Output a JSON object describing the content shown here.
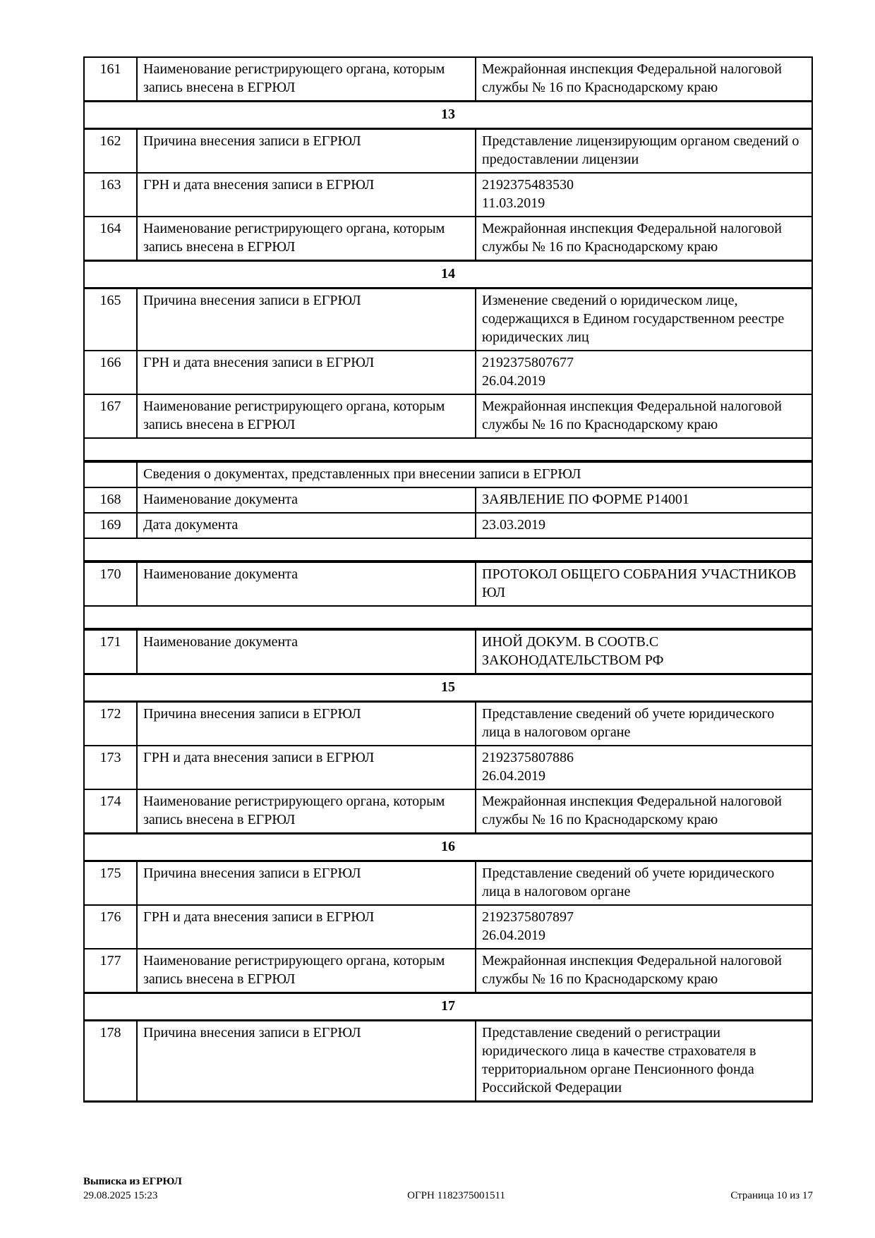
{
  "document": {
    "table": {
      "rows": [
        {
          "type": "data",
          "num": "161",
          "label": "Наименование регистрирующего органа, которым запись внесена в ЕГРЮЛ",
          "value_lines": [
            "Межрайонная инспекция Федеральной налоговой службы № 16 по Краснодарскому краю"
          ]
        },
        {
          "type": "section",
          "label": "13"
        },
        {
          "type": "data",
          "num": "162",
          "label": "Причина внесения записи в ЕГРЮЛ",
          "value_lines": [
            "Представление лицензирующим органом сведений о предоставлении лицензии"
          ]
        },
        {
          "type": "data",
          "num": "163",
          "label": "ГРН и дата внесения записи в ЕГРЮЛ",
          "value_lines": [
            "2192375483530",
            "11.03.2019"
          ]
        },
        {
          "type": "data",
          "num": "164",
          "label": "Наименование регистрирующего органа, которым запись внесена в ЕГРЮЛ",
          "value_lines": [
            "Межрайонная инспекция Федеральной налоговой службы № 16 по Краснодарскому краю"
          ]
        },
        {
          "type": "section",
          "label": "14"
        },
        {
          "type": "data",
          "num": "165",
          "label": "Причина внесения записи в ЕГРЮЛ",
          "value_lines": [
            "Изменение сведений о юридическом лице, содержащихся в Едином государственном реестре юридических лиц"
          ]
        },
        {
          "type": "data",
          "num": "166",
          "label": "ГРН и дата внесения записи в ЕГРЮЛ",
          "value_lines": [
            "2192375807677",
            "26.04.2019"
          ]
        },
        {
          "type": "data",
          "num": "167",
          "label": "Наименование регистрирующего органа, которым запись внесена в ЕГРЮЛ",
          "value_lines": [
            "Межрайонная инспекция Федеральной налоговой службы № 16 по Краснодарскому краю"
          ]
        },
        {
          "type": "spacer"
        },
        {
          "type": "subheader",
          "label": "Сведения о документах, представленных при внесении записи в ЕГРЮЛ"
        },
        {
          "type": "data",
          "num": "168",
          "label": "Наименование документа",
          "value_lines": [
            "ЗАЯВЛЕНИЕ ПО ФОРМЕ Р14001"
          ]
        },
        {
          "type": "data",
          "num": "169",
          "label": "Дата документа",
          "value_lines": [
            "23.03.2019"
          ]
        },
        {
          "type": "spacer"
        },
        {
          "type": "data",
          "num": "170",
          "label": "Наименование документа",
          "value_lines": [
            "ПРОТОКОЛ ОБЩЕГО СОБРАНИЯ УЧАСТНИКОВ ЮЛ"
          ]
        },
        {
          "type": "spacer"
        },
        {
          "type": "data",
          "num": "171",
          "label": "Наименование документа",
          "value_lines": [
            "ИНОЙ ДОКУМ. В СООТВ.С ЗАКОНОДАТЕЛЬСТВОМ РФ"
          ]
        },
        {
          "type": "section",
          "label": "15"
        },
        {
          "type": "data",
          "num": "172",
          "label": "Причина внесения записи в ЕГРЮЛ",
          "value_lines": [
            "Представление сведений об учете юридического лица в налоговом органе"
          ]
        },
        {
          "type": "data",
          "num": "173",
          "label": "ГРН и дата внесения записи в ЕГРЮЛ",
          "value_lines": [
            "2192375807886",
            "26.04.2019"
          ]
        },
        {
          "type": "data",
          "num": "174",
          "label": "Наименование регистрирующего органа, которым запись внесена в ЕГРЮЛ",
          "value_lines": [
            "Межрайонная инспекция Федеральной налоговой службы № 16 по Краснодарскому краю"
          ]
        },
        {
          "type": "section",
          "label": "16"
        },
        {
          "type": "data",
          "num": "175",
          "label": "Причина внесения записи в ЕГРЮЛ",
          "value_lines": [
            "Представление сведений об учете юридического лица в налоговом органе"
          ]
        },
        {
          "type": "data",
          "num": "176",
          "label": "ГРН и дата внесения записи в ЕГРЮЛ",
          "value_lines": [
            "2192375807897",
            "26.04.2019"
          ]
        },
        {
          "type": "data",
          "num": "177",
          "label": "Наименование регистрирующего органа, которым запись внесена в ЕГРЮЛ",
          "value_lines": [
            "Межрайонная инспекция Федеральной налоговой службы № 16 по Краснодарскому краю"
          ]
        },
        {
          "type": "section",
          "label": "17"
        },
        {
          "type": "data",
          "num": "178",
          "label": "Причина внесения записи в ЕГРЮЛ",
          "value_lines": [
            "Представление сведений о регистрации юридического лица в качестве страхователя в территориальном органе Пенсионного фонда Российской Федерации"
          ]
        }
      ]
    },
    "footer": {
      "title": "Выписка из ЕГРЮЛ",
      "datetime": "29.08.2025 15:23",
      "ogrn": "ОГРН 1182375001511",
      "page": "Страница 10 из 17"
    }
  }
}
